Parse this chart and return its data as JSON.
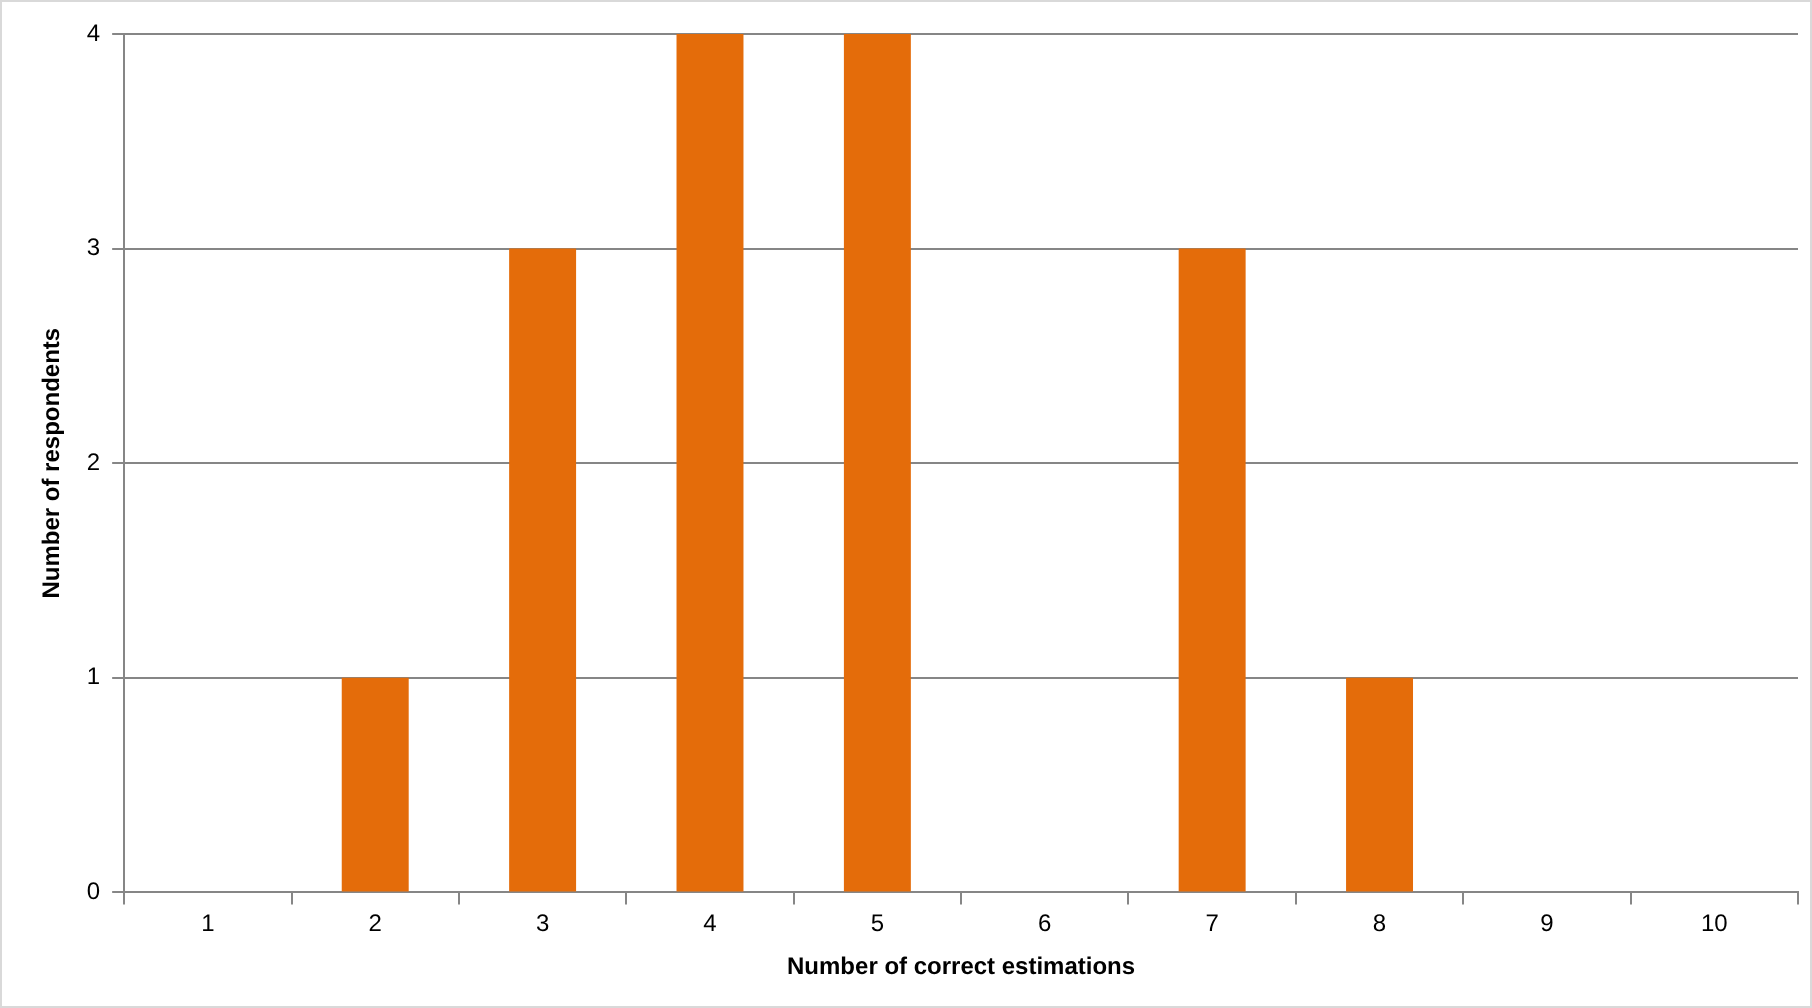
{
  "chart_data": {
    "type": "bar",
    "xlabel": "Number of correct estimations",
    "ylabel": "Number of respondents",
    "categories": [
      "1",
      "2",
      "3",
      "4",
      "5",
      "6",
      "7",
      "8",
      "9",
      "10"
    ],
    "values": [
      0,
      1,
      3,
      4,
      4,
      0,
      3,
      1,
      0,
      0
    ],
    "color": "#e46c0a",
    "ylim": [
      0,
      4
    ],
    "yticks": [
      0,
      1,
      2,
      3,
      4
    ],
    "grid": "y",
    "legend": false
  }
}
